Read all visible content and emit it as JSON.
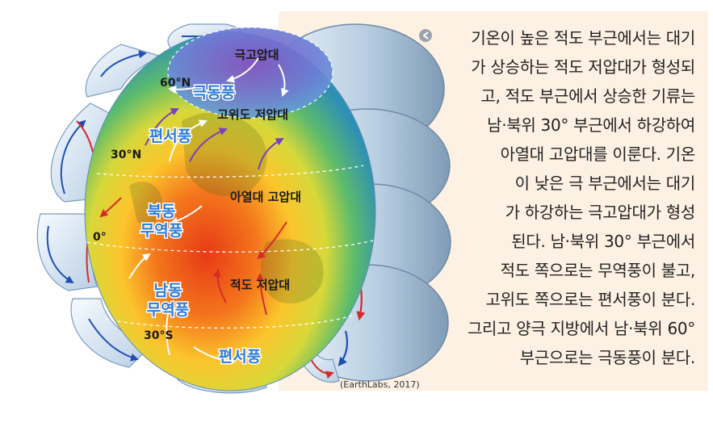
{
  "caption": {
    "bullet_icon": "circle-arrow-icon",
    "lines": [
      "기온이 높은 적도 부근에서는 대기",
      "가 상승하는 적도 저압대가 형성되",
      "고, 적도 부근에서 상승한 기류는",
      "남·북위 30° 부근에서 하강하여",
      "아열대 고압대를 이룬다. 기온",
      "이 낮은 극 부근에서는 대기",
      "가 하강하는 극고압대가 형성",
      "된다. 남·북위 30° 부근에서",
      "적도 쪽으로는 무역풍이 불고,",
      "고위도 쪽으로는 편서풍이 분다.",
      "그리고 양극 지방에서 남·북위 60°",
      "부근으로는 극동풍이 분다."
    ]
  },
  "diagram": {
    "pressure_belts": {
      "polar_high": "극고압대",
      "subpolar_low": "고위도 저압대",
      "subtropical_high": "아열대 고압대",
      "equatorial_low": "적도 저압대"
    },
    "winds": {
      "polar_easterlies": "극동풍",
      "westerlies_north": "편서풍",
      "ne_trades_line1": "북동",
      "ne_trades_line2": "무역풍",
      "se_trades_line1": "남동",
      "se_trades_line2": "무역풍",
      "westerlies_south": "편서풍"
    },
    "latitudes": {
      "lat_60n": "60°N",
      "lat_30n": "30°N",
      "lat_0": "0°",
      "lat_30s": "30°S"
    },
    "colors": {
      "panel_bg": "#fdf1e3",
      "wind_label": "#2e7bd6",
      "red_arrow": "#d62a2a",
      "blue_arrow": "#1f4fb5"
    }
  },
  "source": "(EarthLabs, 2017)"
}
